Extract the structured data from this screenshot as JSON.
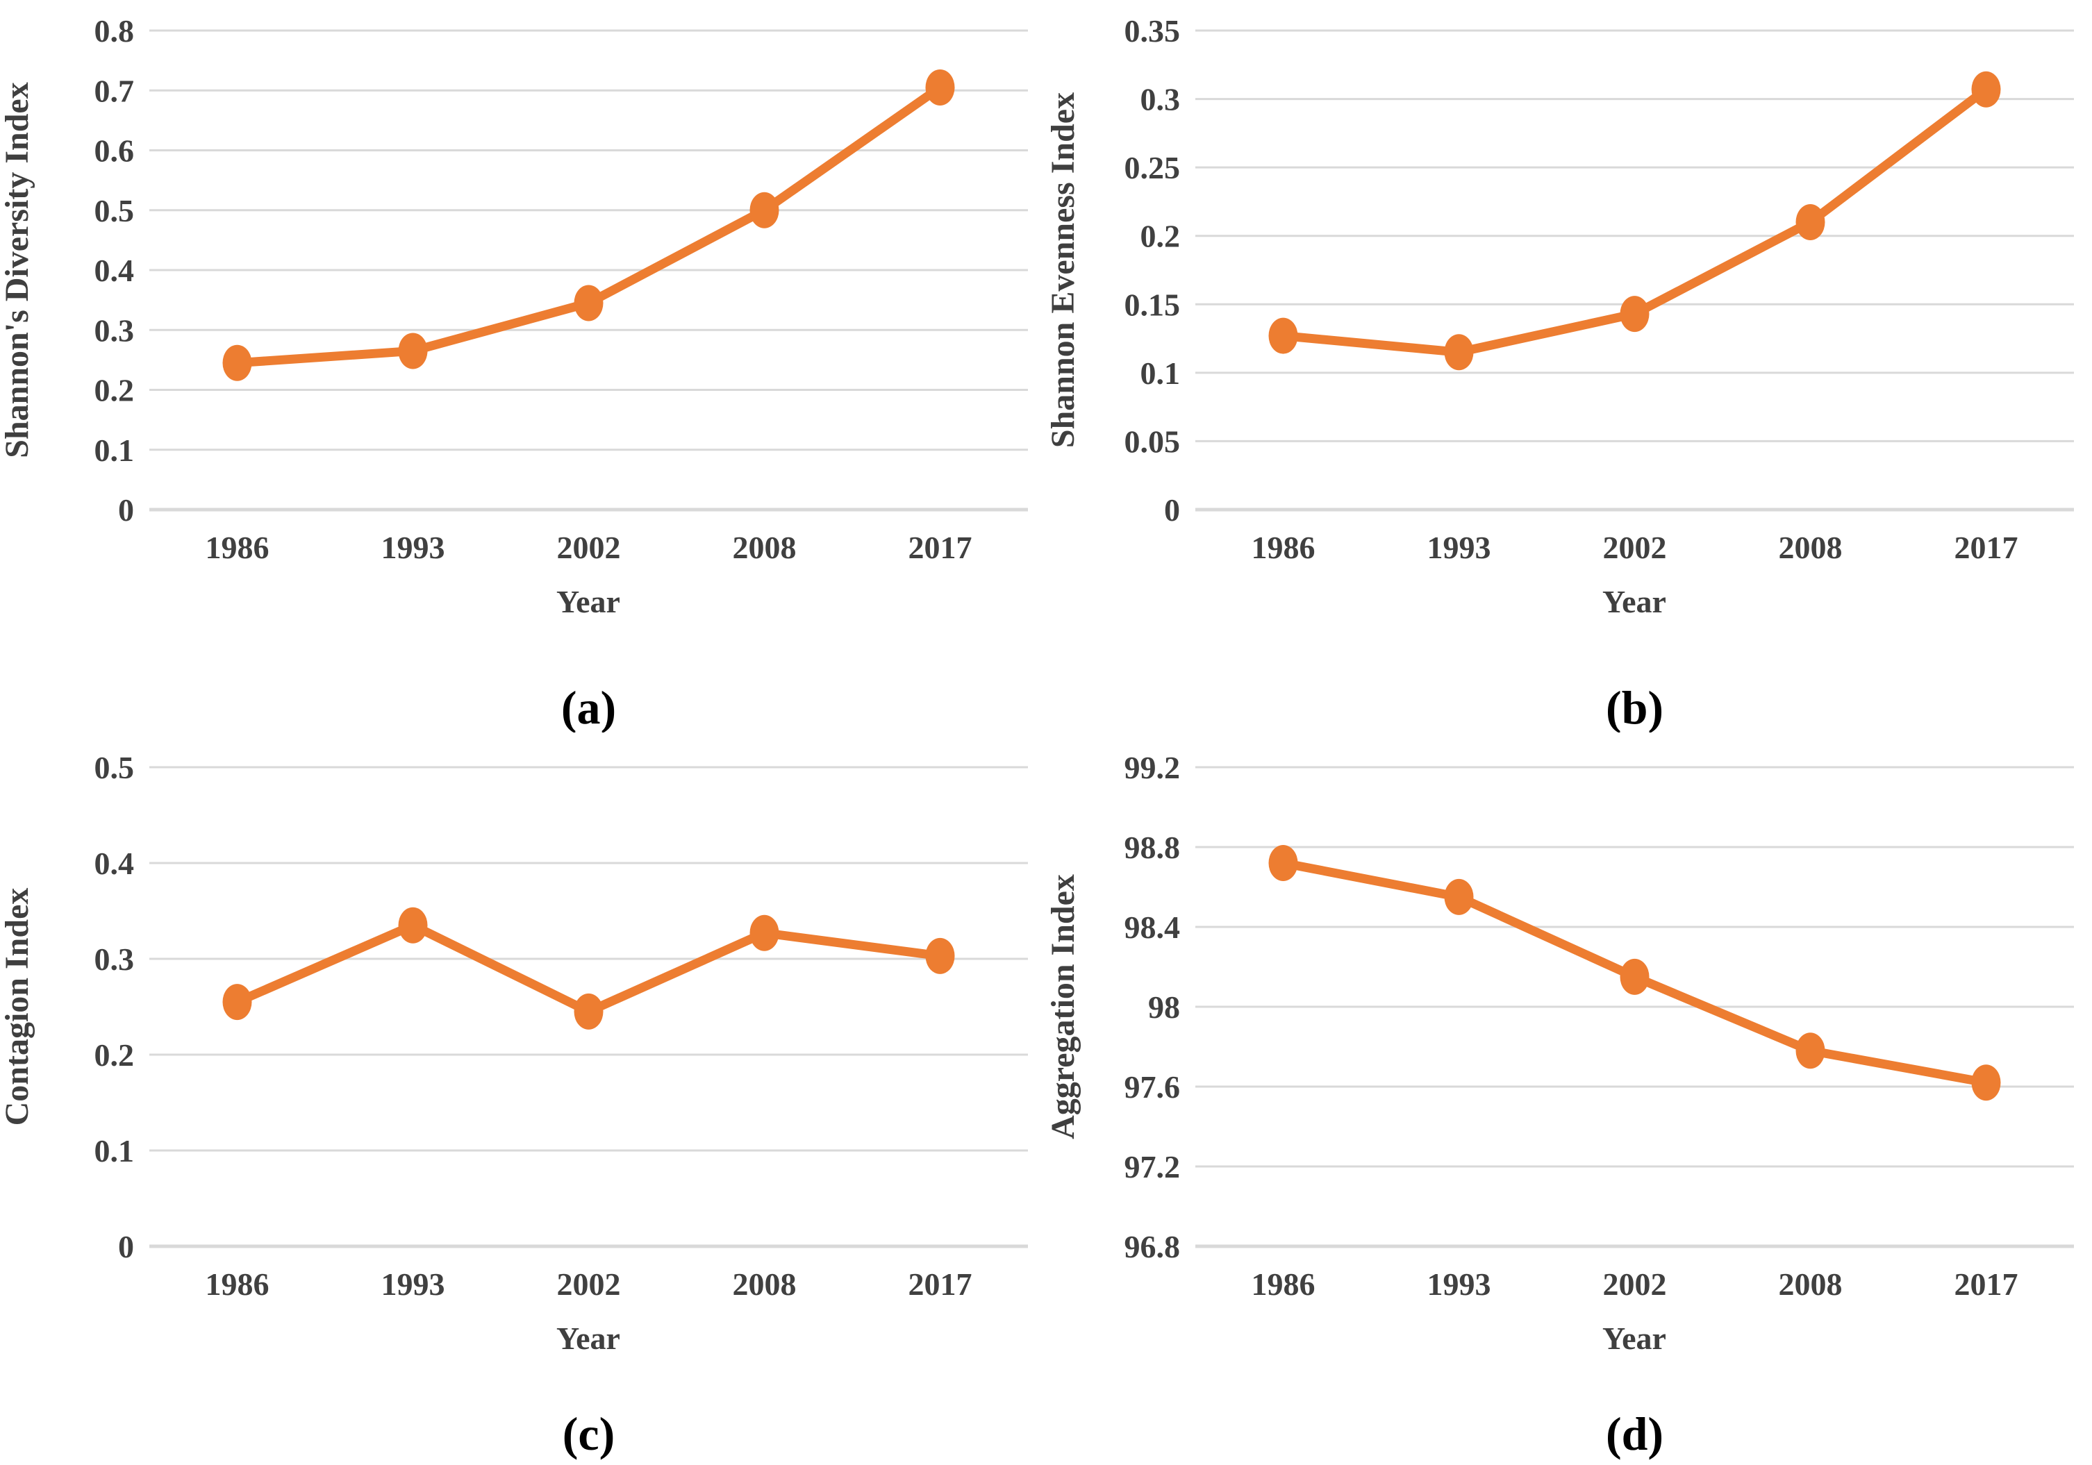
{
  "styles": {
    "accent": "#ED7D31",
    "gridline": "#D9D9D9",
    "tick_text": "#404040",
    "background": "#FFFFFF"
  },
  "chart_data": [
    {
      "type": "line",
      "panel_label": "(a)",
      "xlabel": "Year",
      "ylabel": "Shannon's Diversity Index",
      "categories": [
        "1986",
        "1993",
        "2002",
        "2008",
        "2017"
      ],
      "values": [
        0.245,
        0.265,
        0.345,
        0.5,
        0.705
      ],
      "ylim": [
        0,
        0.8
      ],
      "grid": true,
      "legend": false,
      "marker": "circle",
      "yticks": [
        {
          "value": 0,
          "label": "0"
        },
        {
          "value": 0.1,
          "label": "0.1"
        },
        {
          "value": 0.2,
          "label": "0.2"
        },
        {
          "value": 0.3,
          "label": "0.3"
        },
        {
          "value": 0.4,
          "label": "0.4"
        },
        {
          "value": 0.5,
          "label": "0.5"
        },
        {
          "value": 0.6,
          "label": "0.6"
        },
        {
          "value": 0.7,
          "label": "0.7"
        },
        {
          "value": 0.8,
          "label": "0.8"
        }
      ]
    },
    {
      "type": "line",
      "panel_label": "(b)",
      "xlabel": "Year",
      "ylabel": "Shannon Evenness Index",
      "categories": [
        "1986",
        "1993",
        "2002",
        "2008",
        "2017"
      ],
      "values": [
        0.127,
        0.115,
        0.143,
        0.21,
        0.307
      ],
      "ylim": [
        0,
        0.35
      ],
      "grid": true,
      "legend": false,
      "marker": "circle",
      "yticks": [
        {
          "value": 0,
          "label": "0"
        },
        {
          "value": 0.05,
          "label": "0.05"
        },
        {
          "value": 0.1,
          "label": "0.1"
        },
        {
          "value": 0.15,
          "label": "0.15"
        },
        {
          "value": 0.2,
          "label": "0.2"
        },
        {
          "value": 0.25,
          "label": "0.25"
        },
        {
          "value": 0.3,
          "label": "0.3"
        },
        {
          "value": 0.35,
          "label": "0.35"
        }
      ]
    },
    {
      "type": "line",
      "panel_label": "(c)",
      "xlabel": "Year",
      "ylabel": "Contagion Index",
      "categories": [
        "1986",
        "1993",
        "2002",
        "2008",
        "2017"
      ],
      "values": [
        0.255,
        0.335,
        0.245,
        0.327,
        0.303
      ],
      "ylim": [
        0,
        0.5
      ],
      "grid": true,
      "legend": false,
      "marker": "circle",
      "yticks": [
        {
          "value": 0,
          "label": "0"
        },
        {
          "value": 0.1,
          "label": "0.1"
        },
        {
          "value": 0.2,
          "label": "0.2"
        },
        {
          "value": 0.3,
          "label": "0.3"
        },
        {
          "value": 0.4,
          "label": "0.4"
        },
        {
          "value": 0.5,
          "label": "0.5"
        }
      ]
    },
    {
      "type": "line",
      "panel_label": "(d)",
      "xlabel": "Year",
      "ylabel": "Aggregation Index",
      "categories": [
        "1986",
        "1993",
        "2002",
        "2008",
        "2017"
      ],
      "values": [
        98.72,
        98.55,
        98.15,
        97.78,
        97.62
      ],
      "ylim": [
        96.8,
        99.2
      ],
      "grid": true,
      "legend": false,
      "marker": "circle",
      "yticks": [
        {
          "value": 96.8,
          "label": "96.8"
        },
        {
          "value": 97.2,
          "label": "97.2"
        },
        {
          "value": 97.6,
          "label": "97.6"
        },
        {
          "value": 98,
          "label": "98"
        },
        {
          "value": 98.4,
          "label": "98.4"
        },
        {
          "value": 98.8,
          "label": "98.8"
        },
        {
          "value": 99.2,
          "label": "99.2"
        }
      ]
    }
  ]
}
